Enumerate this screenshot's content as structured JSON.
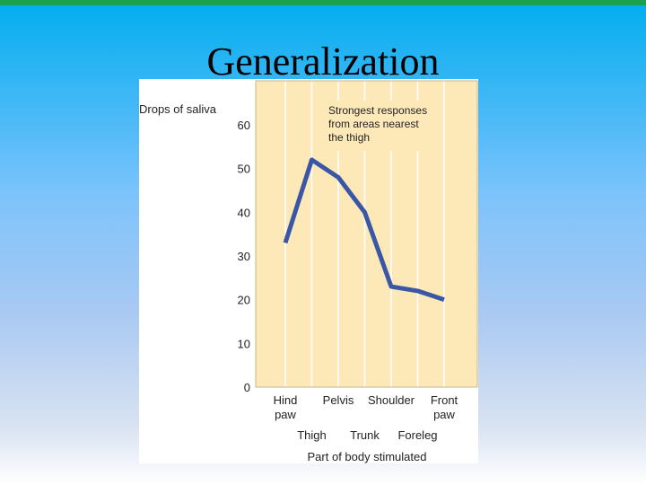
{
  "slide": {
    "title": "Generalization",
    "accent_color": "#1aa34a"
  },
  "chart_data": {
    "type": "line",
    "title": "",
    "ylabel": "Drops of saliva",
    "xlabel": "Part of body stimulated",
    "ylim": [
      0,
      60
    ],
    "yticks": [
      0,
      10,
      20,
      30,
      40,
      50,
      60
    ],
    "categories": [
      "Hind paw",
      "Thigh",
      "Pelvis",
      "Trunk",
      "Shoulder",
      "Foreleg",
      "Front paw"
    ],
    "category_labels_top": [
      "Hind\npaw",
      "Pelvis",
      "Shoulder",
      "Front\npaw"
    ],
    "category_labels_bottom": [
      "Thigh",
      "Trunk",
      "Foreleg"
    ],
    "series": [
      {
        "values": [
          33,
          52,
          48,
          40,
          23,
          22,
          20
        ],
        "color": "#3a56a6"
      }
    ],
    "annotation": "Strongest responses\nfrom areas nearest\nthe thigh",
    "plot_background": "#fde9b8",
    "grid": true
  }
}
